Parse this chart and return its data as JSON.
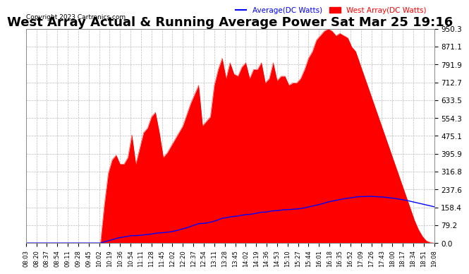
{
  "title": "West Array Actual & Running Average Power Sat Mar 25 19:16",
  "copyright": "Copyright 2023 Cartronics.com",
  "legend_avg": "Average(DC Watts)",
  "legend_west": "West Array(DC Watts)",
  "legend_avg_color": "blue",
  "legend_west_color": "red",
  "yticks": [
    0.0,
    79.2,
    158.4,
    237.6,
    316.8,
    395.9,
    475.1,
    554.3,
    633.5,
    712.7,
    791.9,
    871.1,
    950.3
  ],
  "ylim": [
    0.0,
    950.3
  ],
  "background_color": "#ffffff",
  "grid_color": "#bbbbbb",
  "title_fontsize": 13,
  "x_labels": [
    "08:03",
    "08:20",
    "08:37",
    "08:54",
    "09:11",
    "09:28",
    "09:45",
    "10:02",
    "10:19",
    "10:36",
    "10:54",
    "11:11",
    "11:28",
    "11:45",
    "12:02",
    "12:20",
    "12:37",
    "12:54",
    "13:11",
    "13:28",
    "13:45",
    "14:02",
    "14:19",
    "14:36",
    "14:53",
    "15:10",
    "15:27",
    "15:44",
    "16:01",
    "16:18",
    "16:35",
    "16:52",
    "17:09",
    "17:26",
    "17:43",
    "18:00",
    "18:17",
    "18:34",
    "18:51",
    "19:08"
  ],
  "west_array_values": [
    0,
    0,
    0,
    0,
    0,
    0,
    0,
    0,
    0,
    0,
    0,
    0,
    0,
    0,
    0,
    0,
    0,
    0,
    0,
    0,
    170,
    310,
    370,
    390,
    350,
    350,
    380,
    480,
    350,
    420,
    490,
    510,
    560,
    580,
    490,
    380,
    400,
    430,
    460,
    490,
    520,
    570,
    620,
    660,
    700,
    520,
    540,
    560,
    700,
    770,
    820,
    730,
    800,
    750,
    740,
    780,
    800,
    730,
    770,
    770,
    800,
    710,
    730,
    800,
    720,
    740,
    740,
    700,
    710,
    710,
    730,
    770,
    820,
    850,
    900,
    920,
    940,
    950,
    940,
    920,
    930,
    920,
    910,
    870,
    850,
    800,
    750,
    700,
    650,
    600,
    550,
    500,
    450,
    400,
    350,
    300,
    250,
    200,
    150,
    100,
    60,
    30,
    10,
    3,
    0
  ],
  "avg_values": [
    0,
    0,
    0,
    0,
    0,
    0,
    0,
    0,
    0,
    0,
    0,
    0,
    0,
    0,
    0,
    0,
    0,
    0,
    0,
    0,
    5,
    10,
    15,
    20,
    24,
    27,
    30,
    33,
    33,
    34,
    36,
    38,
    40,
    43,
    45,
    46,
    48,
    50,
    54,
    58,
    63,
    68,
    74,
    80,
    86,
    87,
    89,
    92,
    97,
    103,
    110,
    112,
    116,
    118,
    120,
    123,
    126,
    127,
    130,
    133,
    137,
    137,
    140,
    143,
    144,
    146,
    148,
    148,
    150,
    151,
    153,
    156,
    160,
    164,
    168,
    172,
    177,
    182,
    186,
    189,
    193,
    196,
    199,
    201,
    204,
    206,
    206,
    207,
    207,
    206,
    205,
    204,
    202,
    200,
    198,
    195,
    192,
    189,
    185,
    181,
    177,
    173,
    169,
    165,
    161
  ]
}
